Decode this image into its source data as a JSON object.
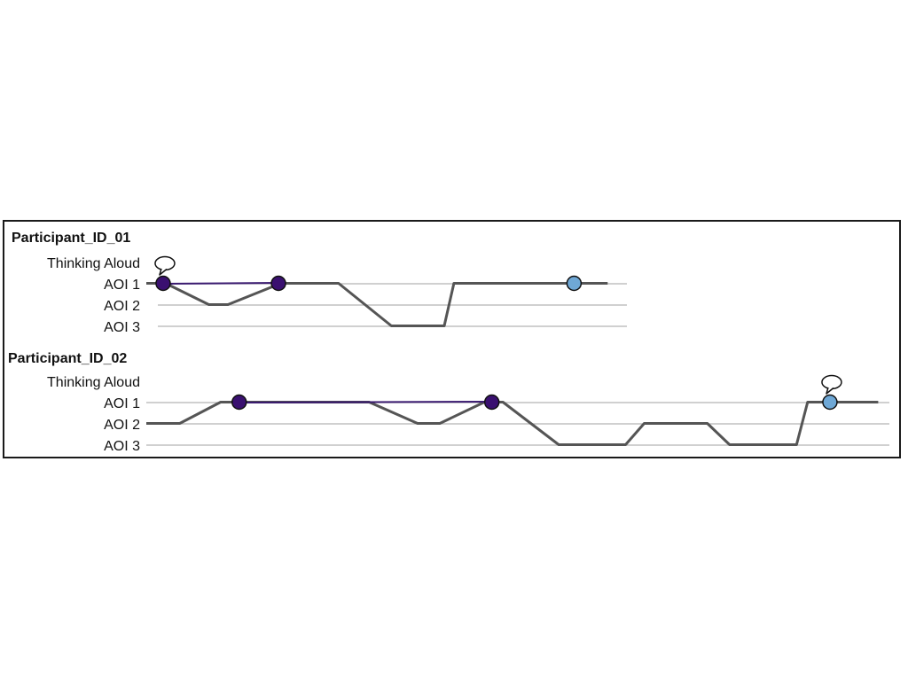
{
  "chart_data": {
    "type": "line",
    "row_labels": [
      "Thinking Aloud",
      "AOI 1",
      "AOI 2",
      "AOI 3"
    ],
    "colors": {
      "scanpath": "#555555",
      "gridline": "#b5b5b5",
      "dark_marker": "#3a1070",
      "light_marker": "#6fa8d6",
      "link_line": "#3a1a70"
    },
    "participants": [
      {
        "title": "Participant_ID_01",
        "x_range": [
          0,
          100
        ],
        "aoi_path": [
          {
            "t": 0,
            "aoi": 1
          },
          {
            "t": 4,
            "aoi": 1
          },
          {
            "t": 13,
            "aoi": 2
          },
          {
            "t": 17,
            "aoi": 2
          },
          {
            "t": 28,
            "aoi": 1
          },
          {
            "t": 40,
            "aoi": 1
          },
          {
            "t": 51,
            "aoi": 3
          },
          {
            "t": 62,
            "aoi": 3
          },
          {
            "t": 64,
            "aoi": 1
          },
          {
            "t": 96,
            "aoi": 1
          }
        ],
        "markers": [
          {
            "t": 3.5,
            "aoi": 1,
            "style": "dark",
            "speech": true
          },
          {
            "t": 27.5,
            "aoi": 1,
            "style": "dark",
            "speech": false
          },
          {
            "t": 89,
            "aoi": 1,
            "style": "light",
            "speech": false
          }
        ],
        "links": [
          {
            "from": 3.5,
            "to": 27.5
          }
        ]
      },
      {
        "title": "Participant_ID_02",
        "x_range": [
          0,
          100
        ],
        "aoi_path": [
          {
            "t": 0,
            "aoi": 2
          },
          {
            "t": 4.5,
            "aoi": 2
          },
          {
            "t": 10,
            "aoi": 1
          },
          {
            "t": 30,
            "aoi": 1
          },
          {
            "t": 36.5,
            "aoi": 2
          },
          {
            "t": 39.5,
            "aoi": 2
          },
          {
            "t": 45.5,
            "aoi": 1
          },
          {
            "t": 48,
            "aoi": 1
          },
          {
            "t": 55.5,
            "aoi": 3
          },
          {
            "t": 64.5,
            "aoi": 3
          },
          {
            "t": 67,
            "aoi": 2
          },
          {
            "t": 75.5,
            "aoi": 2
          },
          {
            "t": 78.5,
            "aoi": 3
          },
          {
            "t": 87.5,
            "aoi": 3
          },
          {
            "t": 89,
            "aoi": 1
          },
          {
            "t": 98.5,
            "aoi": 1
          }
        ],
        "markers": [
          {
            "t": 12.5,
            "aoi": 1,
            "style": "dark",
            "speech": false
          },
          {
            "t": 46.5,
            "aoi": 1,
            "style": "dark",
            "speech": false
          },
          {
            "t": 92,
            "aoi": 1,
            "style": "light",
            "speech": true
          }
        ],
        "links": [
          {
            "from": 12.5,
            "to": 46.5
          }
        ]
      }
    ]
  }
}
